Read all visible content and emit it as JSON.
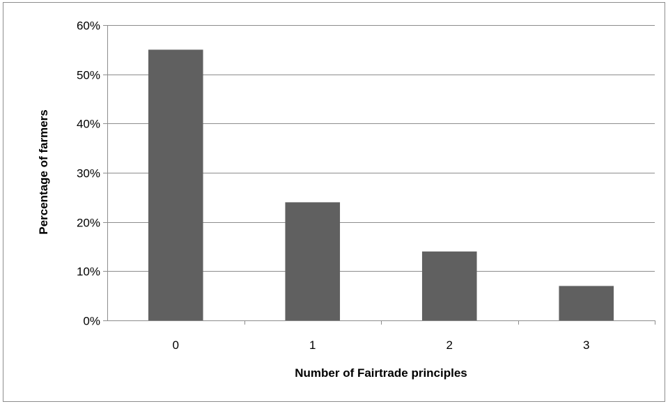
{
  "chart_data": {
    "type": "bar",
    "categories": [
      "0",
      "1",
      "2",
      "3"
    ],
    "values": [
      55,
      24,
      14,
      7
    ],
    "value_unit": "%",
    "title": "",
    "xlabel": "Number of Fairtrade principles",
    "ylabel": "Percentage of farmers",
    "ylim": [
      0,
      60
    ],
    "yticks": [
      "0%",
      "10%",
      "20%",
      "30%",
      "40%",
      "50%",
      "60%"
    ],
    "grid": true,
    "legend": "none",
    "bar_color": "#606060",
    "grid_color": "#8c8c8c"
  }
}
